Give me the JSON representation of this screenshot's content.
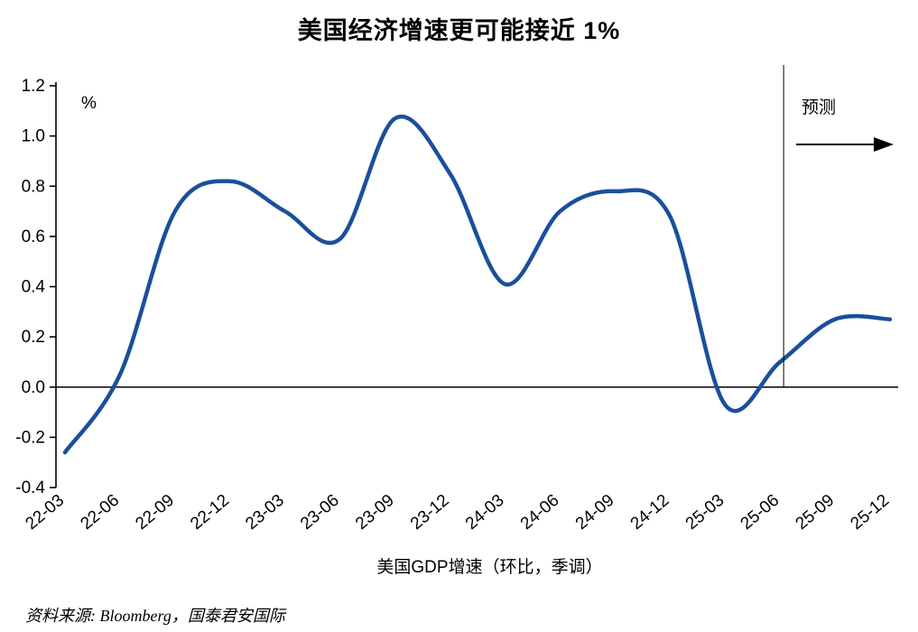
{
  "title": "美国经济增速更可能接近 1%",
  "annotations": {
    "percent_label": "%",
    "forecast_label": "预测"
  },
  "legend": {
    "series_label": "美国GDP增速（环比，季调）"
  },
  "source": {
    "text": "资料来源: Bloomberg，国泰君安国际"
  },
  "chart_data": {
    "type": "line",
    "title": "美国经济增速更可能接近 1%",
    "xlabel": "",
    "ylabel": "%",
    "ylim": [
      -0.4,
      1.2
    ],
    "ytick_step": 0.2,
    "grid": false,
    "legend_position": "bottom",
    "categories": [
      "22-03",
      "22-06",
      "22-09",
      "22-12",
      "23-03",
      "23-06",
      "23-09",
      "23-12",
      "24-03",
      "24-06",
      "24-09",
      "24-12",
      "25-03",
      "25-06",
      "25-09",
      "25-12"
    ],
    "series": [
      {
        "name": "美国GDP增速（环比，季调）",
        "color": "#1a4f9c",
        "values": [
          -0.26,
          0.05,
          0.7,
          0.82,
          0.7,
          0.59,
          1.07,
          0.85,
          0.41,
          0.7,
          0.78,
          0.68,
          -0.07,
          0.1,
          0.27,
          0.27
        ]
      }
    ],
    "forecast": {
      "label": "预测",
      "start_category": "25-06"
    }
  }
}
